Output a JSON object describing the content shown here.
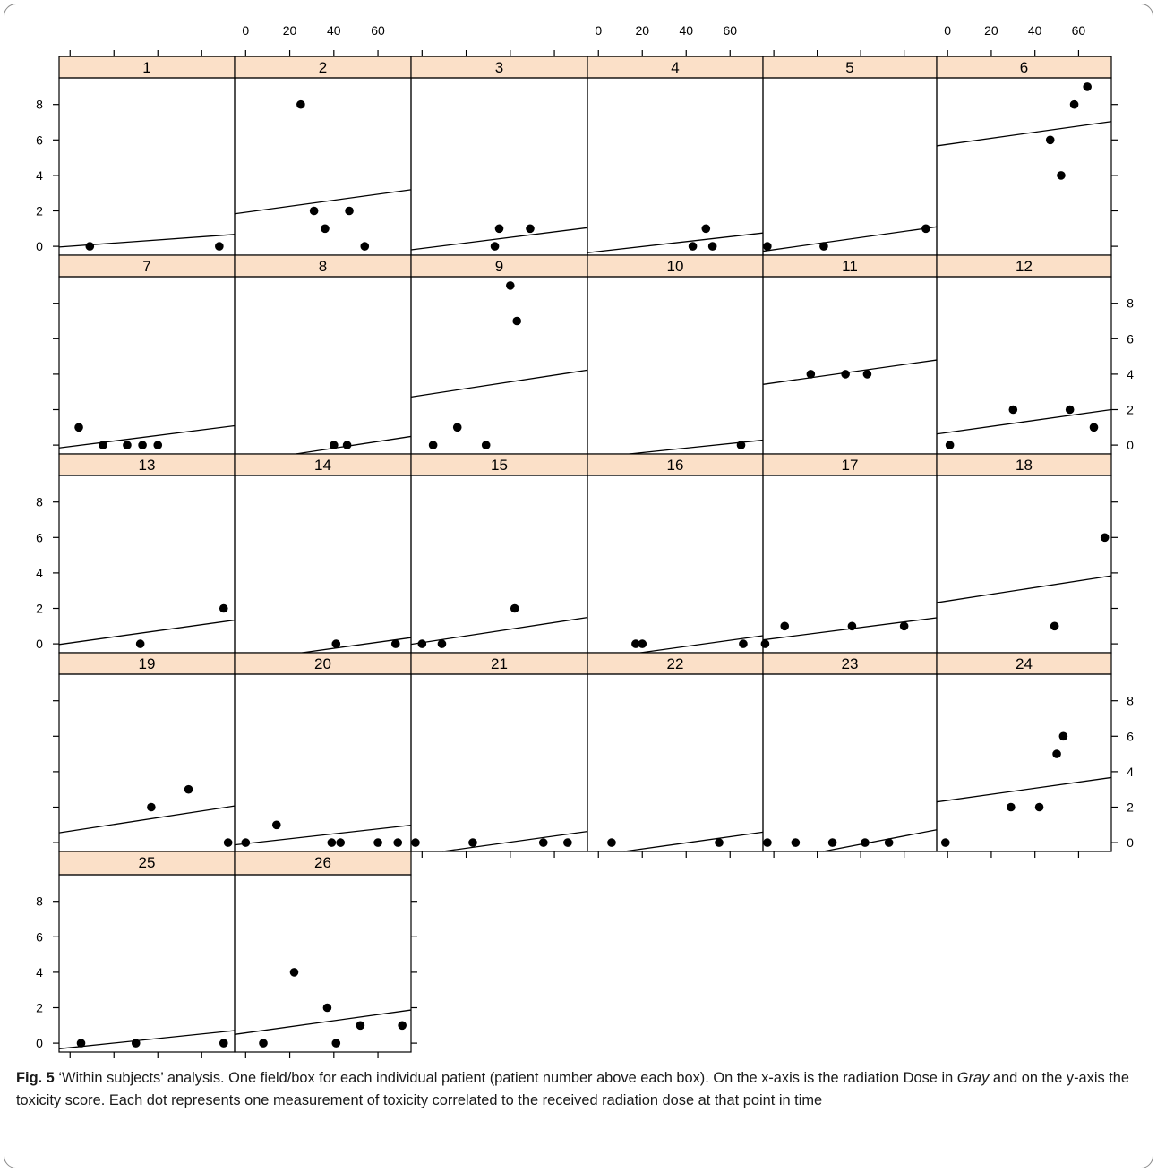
{
  "chart_data": {
    "type": "scatter",
    "layout": "trellis",
    "x_ticks": [
      0,
      20,
      40,
      60
    ],
    "y_ticks": [
      0,
      2,
      4,
      6,
      8
    ],
    "xlim": [
      -5,
      75
    ],
    "ylim": [
      -0.5,
      9.5
    ],
    "colors": {
      "strip": "#fbe0c8",
      "point": "#000000",
      "line": "#000000",
      "border": "#000000"
    },
    "panels": [
      {
        "label": "1",
        "x": [
          9,
          68
        ],
        "y": [
          0,
          0
        ],
        "line": [
          0.005,
          0.0089
        ]
      },
      {
        "label": "2",
        "x": [
          25,
          31,
          36,
          47,
          54
        ],
        "y": [
          8,
          2,
          1,
          2,
          0
        ],
        "line": [
          1.92,
          0.017
        ]
      },
      {
        "label": "3",
        "x": [
          33,
          35,
          49
        ],
        "y": [
          0,
          1,
          1
        ],
        "line": [
          -0.12,
          0.0156
        ]
      },
      {
        "label": "4",
        "x": [
          43,
          49,
          52
        ],
        "y": [
          0,
          1,
          0
        ],
        "line": [
          -0.29,
          0.0139
        ]
      },
      {
        "label": "5",
        "x": [
          -3,
          23,
          70
        ],
        "y": [
          0,
          0,
          1
        ],
        "line": [
          -0.19,
          0.0172
        ]
      },
      {
        "label": "6",
        "x": [
          47,
          52,
          58,
          64
        ],
        "y": [
          6,
          4,
          8,
          9
        ],
        "line": [
          5.75,
          0.0172
        ]
      },
      {
        "label": "7",
        "x": [
          4,
          15,
          26,
          33,
          40
        ],
        "y": [
          1,
          0,
          0,
          0,
          0
        ],
        "line": [
          -0.08,
          0.0156
        ]
      },
      {
        "label": "8",
        "x": [
          40,
          46
        ],
        "y": [
          0,
          0
        ],
        "line": [
          -0.93,
          0.0189
        ]
      },
      {
        "label": "9",
        "x": [
          5,
          16,
          29,
          40,
          43
        ],
        "y": [
          0,
          1,
          0,
          9,
          7
        ],
        "line": [
          2.81,
          0.0189
        ]
      },
      {
        "label": "10",
        "x": [
          65
        ],
        "y": [
          0
        ],
        "line": [
          -0.68,
          0.0128
        ]
      },
      {
        "label": "11",
        "x": [
          17,
          33,
          43
        ],
        "y": [
          4,
          4,
          4
        ],
        "line": [
          3.51,
          0.0172
        ]
      },
      {
        "label": "12",
        "x": [
          1,
          30,
          56,
          67
        ],
        "y": [
          0,
          2,
          2,
          1
        ],
        "line": [
          0.71,
          0.0172
        ]
      },
      {
        "label": "13",
        "x": [
          32,
          70
        ],
        "y": [
          0,
          2
        ],
        "line": [
          0.05,
          0.0172
        ]
      },
      {
        "label": "14",
        "x": [
          41,
          68
        ],
        "y": [
          0,
          0
        ],
        "line": [
          -0.94,
          0.0172
        ]
      },
      {
        "label": "15",
        "x": [
          0,
          9,
          42
        ],
        "y": [
          0,
          0,
          2
        ],
        "line": [
          0.07,
          0.0189
        ]
      },
      {
        "label": "16",
        "x": [
          17,
          20,
          66
        ],
        "y": [
          0,
          0,
          0
        ],
        "line": [
          -0.83,
          0.0172
        ]
      },
      {
        "label": "17",
        "x": [
          -4,
          5,
          36,
          60
        ],
        "y": [
          0,
          1,
          1,
          1
        ],
        "line": [
          0.3,
          0.0156
        ]
      },
      {
        "label": "18",
        "x": [
          49,
          72
        ],
        "y": [
          1,
          6
        ],
        "line": [
          2.42,
          0.0189
        ]
      },
      {
        "label": "19",
        "x": [
          37,
          54,
          72
        ],
        "y": [
          2,
          3,
          0
        ],
        "line": [
          0.65,
          0.0189
        ]
      },
      {
        "label": "20",
        "x": [
          0,
          14,
          39,
          43,
          60,
          69
        ],
        "y": [
          0,
          1,
          0,
          0,
          0,
          0
        ],
        "line": [
          -0.06,
          0.0139
        ]
      },
      {
        "label": "21",
        "x": [
          -3,
          23,
          55,
          66
        ],
        "y": [
          0,
          0,
          0,
          0
        ],
        "line": [
          -0.66,
          0.0172
        ]
      },
      {
        "label": "22",
        "x": [
          6,
          55,
          77
        ],
        "y": [
          0,
          0,
          0
        ],
        "line": [
          -0.7,
          0.0172
        ]
      },
      {
        "label": "23",
        "x": [
          10,
          27,
          42,
          53
        ],
        "y": [
          0,
          0,
          0,
          0
        ],
        "line": [
          -1.03,
          0.0234
        ]
      },
      {
        "label": "24",
        "x": [
          -1,
          29,
          42,
          50,
          53
        ],
        "y": [
          0,
          2,
          2,
          5,
          6
        ],
        "line": [
          2.38,
          0.0172
        ]
      },
      {
        "label": "25",
        "x": [
          5,
          30,
          70
        ],
        "y": [
          0,
          0,
          0
        ],
        "line": [
          -0.25,
          0.0128
        ]
      },
      {
        "label": "26",
        "x": [
          8,
          22,
          37,
          41,
          52,
          71
        ],
        "y": [
          0,
          4,
          2,
          0,
          1,
          1
        ],
        "line": [
          0.58,
          0.0172
        ]
      }
    ]
  },
  "caption": {
    "fig_label": "Fig. 5",
    "text_1": " ‘Within subjects’ analysis. One field/box for each individual patient (patient number above each box). On the x-axis is the radiation Dose in ",
    "italic_word": "Gray",
    "text_2": " and on the y-axis the toxicity score. Each dot represents one measurement of toxicity correlated to the received radiation dose at that point in time"
  }
}
